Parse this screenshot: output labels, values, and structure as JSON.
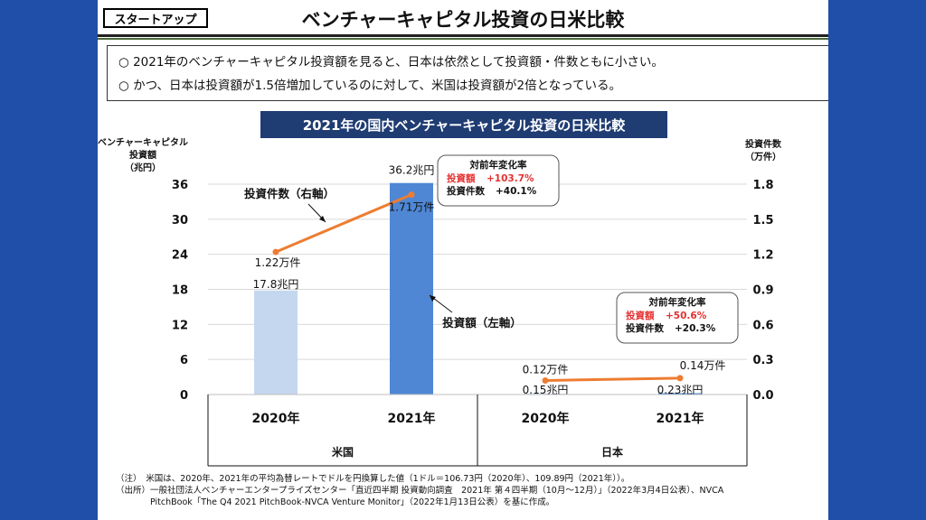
{
  "header": {
    "tag": "スタートアップ",
    "title": "ベンチャーキャピタル投資の日米比較"
  },
  "bullets": [
    "○ 2021年のベンチャーキャピタル投資額を見ると、日本は依然として投資額・件数ともに小さい。",
    "○ かつ、日本は投資額が1.5倍増加しているのに対して、米国は投資額が2倍となっている。"
  ],
  "chart_data": {
    "type": "bar",
    "title": "2021年の国内ベンチャーキャピタル投資の日米比較",
    "categories": [
      "2020年",
      "2021年",
      "2020年",
      "2021年"
    ],
    "groups": [
      "米国",
      "日本"
    ],
    "ylabel_left": [
      "ベンチャーキャピタル",
      "投資額",
      "（兆円）"
    ],
    "ylabel_right": [
      "投資件数",
      "（万件）"
    ],
    "ylim_left": [
      0,
      36
    ],
    "ylim_right": [
      0,
      1.8
    ],
    "yticks_left": [
      "0",
      "6",
      "12",
      "18",
      "24",
      "30",
      "36"
    ],
    "yticks_right": [
      "0.0",
      "0.3",
      "0.6",
      "0.9",
      "1.2",
      "1.5",
      "1.8"
    ],
    "grid": true,
    "series": [
      {
        "name": "投資額",
        "axis": "left",
        "kind": "bar",
        "values": [
          17.8,
          36.2,
          0.15,
          0.23
        ],
        "labels": [
          "17.8兆円",
          "36.2兆円",
          "0.15兆円",
          "0.23兆円"
        ],
        "colors": [
          "#c5d7ef",
          "#4f87d4",
          "#c5d7ef",
          "#4f87d4"
        ]
      },
      {
        "name": "投資件数",
        "axis": "right",
        "kind": "line",
        "values": [
          1.22,
          1.71,
          0.12,
          0.14
        ],
        "labels": [
          "1.22万件",
          "1.71万件",
          "0.12万件",
          "0.14万件"
        ],
        "color": "#ed7d31"
      }
    ],
    "annotations": {
      "line_label": "投資件数（右軸）",
      "bar_label": "投資額（左軸）",
      "us_box": {
        "title": "対前年変化率",
        "row1_label": "投資額",
        "row1_value": "+103.7%",
        "row2_label": "投資件数",
        "row2_value": "+40.1%"
      },
      "jp_box": {
        "title": "対前年変化率",
        "row1_label": "投資額",
        "row1_value": "+50.6%",
        "row2_label": "投資件数",
        "row2_value": "+20.3%"
      }
    }
  },
  "notes": [
    "（注）　米国は、2020年、2021年の平均為替レートでドルを円換算した値（1ドル＝106.73円（2020年）、109.89円（2021年））。",
    "（出所）一般社団法人ベンチャーエンタープライズセンター「直近四半期 投資動向調査　2021年 第４四半期（10月～12月）」（2022年3月4日公表）、NVCA",
    "　　　　PitchBook「The Q4 2021 PitchBook-NVCA Venture Monitor」（2022年1月13日公表）を基に作成。"
  ]
}
